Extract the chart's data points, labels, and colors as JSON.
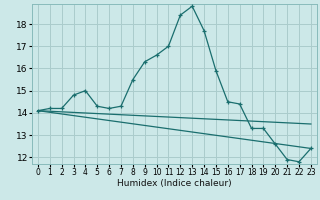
{
  "xlabel": "Humidex (Indice chaleur)",
  "bg_color": "#cce8e8",
  "grid_color": "#aacccc",
  "line_color": "#1a6e6e",
  "x_ticks": [
    0,
    1,
    2,
    3,
    4,
    5,
    6,
    7,
    8,
    9,
    10,
    11,
    12,
    13,
    14,
    15,
    16,
    17,
    18,
    19,
    20,
    21,
    22,
    23
  ],
  "y_ticks": [
    12,
    13,
    14,
    15,
    16,
    17,
    18
  ],
  "xlim": [
    -0.5,
    23.5
  ],
  "ylim": [
    11.7,
    18.9
  ],
  "series1_x": [
    0,
    1,
    2,
    3,
    4,
    5,
    6,
    7,
    8,
    9,
    10,
    11,
    12,
    13,
    14,
    15,
    16,
    17,
    18,
    19,
    20,
    21,
    22,
    23
  ],
  "series1_y": [
    14.1,
    14.2,
    14.2,
    14.8,
    15.0,
    14.3,
    14.2,
    14.3,
    15.5,
    16.3,
    16.6,
    17.0,
    18.4,
    18.8,
    17.7,
    15.9,
    14.5,
    14.4,
    13.3,
    13.3,
    12.6,
    11.9,
    11.8,
    12.4
  ],
  "series2_x": [
    0,
    23
  ],
  "series2_y": [
    14.1,
    13.5
  ],
  "series3_x": [
    0,
    23
  ],
  "series3_y": [
    14.1,
    12.4
  ]
}
